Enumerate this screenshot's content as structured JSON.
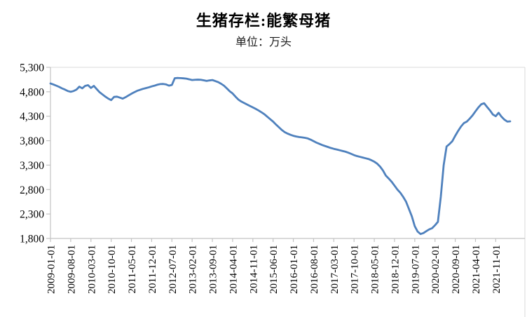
{
  "chart_data": {
    "type": "line",
    "title": "生猪存栏:能繁母猪",
    "subtitle": "单位：万头",
    "unit": "万头",
    "legend": "none",
    "grid": "off",
    "x_interval": "monthly",
    "x_start": "2009-01",
    "x_end": "2022-04",
    "x_tick_labels": [
      "2009-01-01",
      "2009-08-01",
      "2010-03-01",
      "2010-10-01",
      "2011-05-01",
      "2011-12-01",
      "2012-07-01",
      "2013-02-01",
      "2013-09-01",
      "2014-04-01",
      "2014-11-01",
      "2015-06-01",
      "2016-01-01",
      "2016-08-01",
      "2017-03-01",
      "2017-10-01",
      "2018-05-01",
      "2018-12-01",
      "2019-07-01",
      "2020-02-01",
      "2020-09-01",
      "2021-04-01",
      "2021-11-01"
    ],
    "y_tick_labels": [
      "5,300",
      "4,800",
      "4,300",
      "3,800",
      "3,300",
      "2,800",
      "2,300",
      "1,800"
    ],
    "y_ticks": [
      5300,
      4800,
      4300,
      3800,
      3300,
      2800,
      2300,
      1800
    ],
    "ylim": [
      1800,
      5300
    ],
    "line_color": "#4f81bd",
    "axis_color": "#c3c3c3",
    "border_color": "#d9d9d9",
    "series": [
      {
        "name": "生猪存栏:能繁母猪",
        "values": [
          4970,
          4950,
          4925,
          4900,
          4870,
          4845,
          4815,
          4800,
          4815,
          4845,
          4905,
          4870,
          4920,
          4935,
          4878,
          4920,
          4855,
          4790,
          4745,
          4700,
          4660,
          4630,
          4695,
          4700,
          4680,
          4660,
          4690,
          4725,
          4760,
          4790,
          4820,
          4840,
          4860,
          4875,
          4890,
          4910,
          4925,
          4945,
          4958,
          4960,
          4950,
          4925,
          4940,
          5078,
          5082,
          5080,
          5075,
          5068,
          5055,
          5040,
          5045,
          5048,
          5045,
          5035,
          5022,
          5032,
          5040,
          5020,
          4998,
          4965,
          4925,
          4870,
          4810,
          4765,
          4700,
          4640,
          4600,
          4570,
          4540,
          4510,
          4480,
          4450,
          4417,
          4380,
          4340,
          4290,
          4240,
          4190,
          4130,
          4075,
          4020,
          3975,
          3945,
          3920,
          3900,
          3885,
          3875,
          3868,
          3858,
          3845,
          3820,
          3790,
          3760,
          3735,
          3710,
          3690,
          3670,
          3650,
          3633,
          3620,
          3605,
          3590,
          3575,
          3555,
          3530,
          3505,
          3485,
          3470,
          3455,
          3440,
          3425,
          3400,
          3370,
          3330,
          3270,
          3190,
          3085,
          3025,
          2960,
          2880,
          2800,
          2735,
          2650,
          2550,
          2400,
          2250,
          2050,
          1940,
          1890,
          1910,
          1950,
          1985,
          2010,
          2070,
          2140,
          2650,
          3300,
          3680,
          3730,
          3790,
          3900,
          4000,
          4090,
          4160,
          4190,
          4250,
          4318,
          4400,
          4480,
          4545,
          4565,
          4490,
          4420,
          4337,
          4300,
          4370,
          4290,
          4230,
          4190,
          4195
        ]
      }
    ]
  }
}
